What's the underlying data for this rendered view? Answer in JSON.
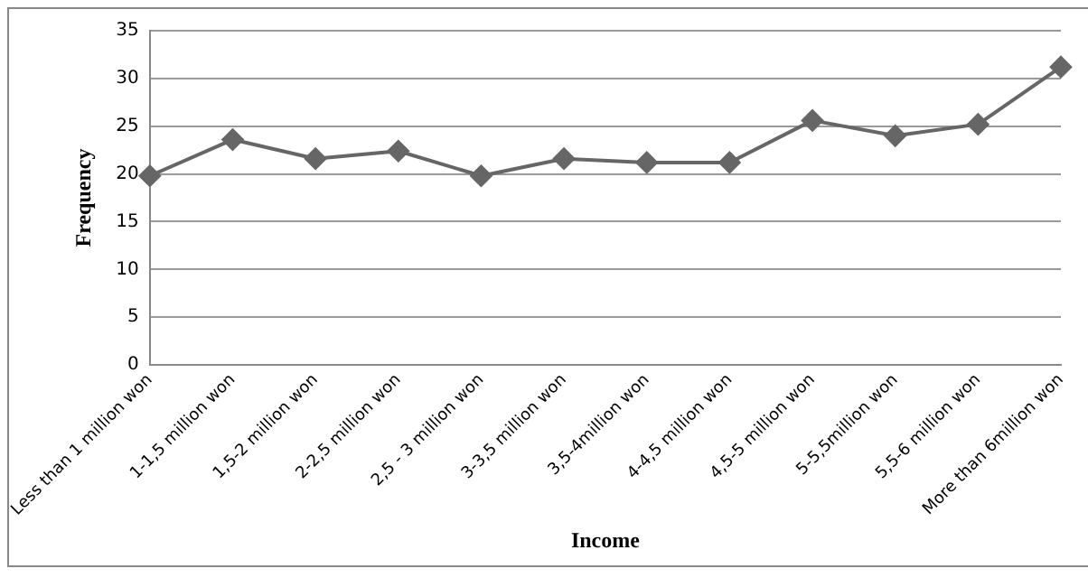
{
  "chart_data": {
    "type": "line",
    "xlabel": "Income",
    "ylabel": "Frequency",
    "categories": [
      "Less than 1 million won",
      "1-1,5 million won",
      "1,5-2 million won",
      "2-2,5 million won",
      "2,5 - 3 million won",
      "3-3,5 million won",
      "3,5-4million won",
      "4-4,5 million won",
      "4,5-5 million won",
      "5-5,5million won",
      "5,5-6 million won",
      "More than 6million won"
    ],
    "series": [
      {
        "color": "#666666",
        "values": [
          19.8,
          23.6,
          21.6,
          22.4,
          19.8,
          21.6,
          21.2,
          21.2,
          25.6,
          24.0,
          25.2,
          31.2
        ]
      }
    ],
    "ylim": [
      0,
      35
    ],
    "yticks": [
      0,
      5,
      10,
      15,
      20,
      25,
      30,
      35
    ],
    "grid": "y",
    "legend": false,
    "marker": "diamond",
    "line_style": "solid"
  }
}
